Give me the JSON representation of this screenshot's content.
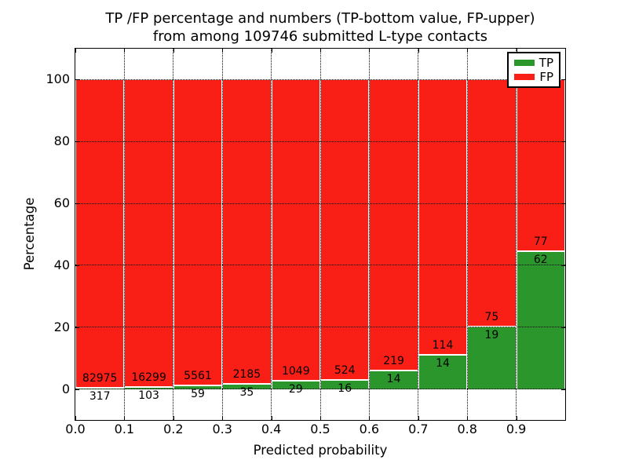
{
  "figure": {
    "title_line1": "TP /FP percentage and numbers (TP-bottom value, FP-upper)",
    "title_line2": "from among 109746 submitted L-type contacts"
  },
  "chart_data": {
    "type": "bar",
    "stacked": true,
    "title": "TP /FP percentage and numbers (TP-bottom value, FP-upper)\nfrom among 109746 submitted L-type contacts",
    "xlabel": "Predicted probability",
    "ylabel": "Percentage",
    "xlim": [
      0.0,
      1.0
    ],
    "ylim": [
      -10,
      110
    ],
    "x_ticks": [
      "0.0",
      "0.1",
      "0.2",
      "0.3",
      "0.4",
      "0.5",
      "0.6",
      "0.7",
      "0.8",
      "0.9"
    ],
    "x_tick_values": [
      0.0,
      0.1,
      0.2,
      0.3,
      0.4,
      0.5,
      0.6,
      0.7,
      0.8,
      0.9
    ],
    "y_ticks": [
      "0",
      "20",
      "40",
      "60",
      "80",
      "100"
    ],
    "y_tick_values": [
      0,
      20,
      40,
      60,
      80,
      100
    ],
    "grid": true,
    "bin_width": 0.1,
    "total_submitted": 109746,
    "categories": [
      "0.0",
      "0.1",
      "0.2",
      "0.3",
      "0.4",
      "0.5",
      "0.6",
      "0.7",
      "0.8",
      "0.9"
    ],
    "series": [
      {
        "name": "TP",
        "color": "#2b962b",
        "counts": [
          317,
          103,
          59,
          35,
          29,
          16,
          14,
          14,
          19,
          62
        ]
      },
      {
        "name": "FP",
        "color": "#fa1f16",
        "counts": [
          82975,
          16299,
          5561,
          2185,
          1049,
          524,
          219,
          114,
          75,
          77
        ]
      }
    ],
    "tp_percent": [
      0.38,
      0.63,
      1.05,
      1.58,
      2.69,
      2.96,
      6.01,
      10.94,
      20.21,
      44.6
    ],
    "note": "bar heights are per-bin percentages: count/(TP+FP)*100; numbers printed at the TP/FP boundary",
    "legend": {
      "position": "upper right",
      "entries": [
        "TP",
        "FP"
      ]
    }
  }
}
